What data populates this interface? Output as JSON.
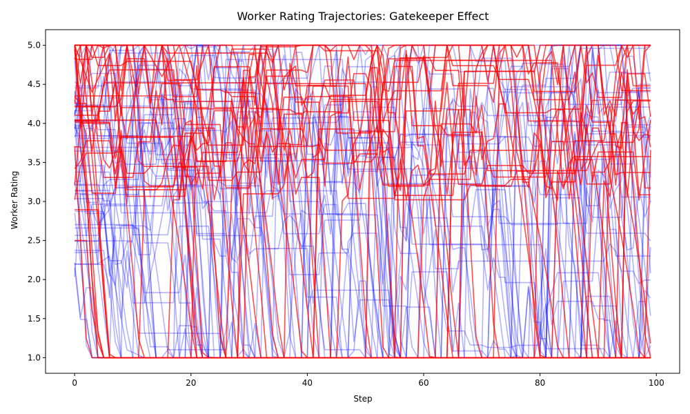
{
  "chart_data": {
    "type": "line",
    "title": "Worker Rating Trajectories: Gatekeeper Effect",
    "xlabel": "Step",
    "ylabel": "Worker Rating",
    "xlim": [
      -5,
      104
    ],
    "ylim": [
      0.8,
      5.2
    ],
    "xticks": [
      0,
      20,
      40,
      60,
      80,
      100
    ],
    "yticks": [
      1.0,
      1.5,
      2.0,
      2.5,
      3.0,
      3.5,
      4.0,
      4.5,
      5.0
    ],
    "grid": false,
    "legend": "none",
    "x_range": [
      0,
      99
    ],
    "rating_floor": 1.0,
    "rating_ceiling": 5.0,
    "groups": [
      {
        "color": "#0000ff",
        "opacity": 0.3,
        "line_count": 50,
        "sample_series": [
          {
            "x": [
              0,
              2,
              4,
              6,
              8,
              10,
              12,
              14,
              16,
              18,
              20
            ],
            "y": [
              3.1,
              3.1,
              2.7,
              2.9,
              3.5,
              1.7,
              1.7,
              2.4,
              3.2,
              1.7,
              1.7
            ]
          },
          {
            "x": [
              0,
              3,
              5,
              7,
              9,
              12,
              15,
              18,
              21,
              24,
              27
            ],
            "y": [
              4.3,
              3.9,
              4.6,
              3.2,
              4.1,
              4.8,
              3.6,
              4.0,
              1.0,
              1.0,
              1.0
            ]
          },
          {
            "x": [
              0,
              2,
              4,
              6,
              9,
              12,
              15,
              20,
              25,
              30
            ],
            "y": [
              2.2,
              2.2,
              2.2,
              2.3,
              1.1,
              1.0,
              1.0,
              1.0,
              1.0,
              1.0
            ]
          }
        ]
      },
      {
        "color": "#ff0000",
        "opacity": 0.7,
        "line_count": 30,
        "sample_series": [
          {
            "x": [
              0,
              2,
              3,
              4,
              5,
              6,
              10,
              20
            ],
            "y": [
              2.5,
              2.5,
              1.6,
              1.2,
              1.0,
              1.0,
              1.0,
              1.0
            ]
          },
          {
            "x": [
              0,
              1,
              2,
              3,
              4,
              5,
              6,
              8
            ],
            "y": [
              3.7,
              3.7,
              3.2,
              2.0,
              1.3,
              1.0,
              1.0,
              1.0
            ]
          },
          {
            "x": [
              0,
              3,
              6,
              9,
              12,
              15,
              18,
              21
            ],
            "y": [
              5.0,
              4.4,
              4.9,
              3.8,
              5.0,
              4.6,
              5.0,
              4.2
            ]
          }
        ]
      }
    ]
  }
}
